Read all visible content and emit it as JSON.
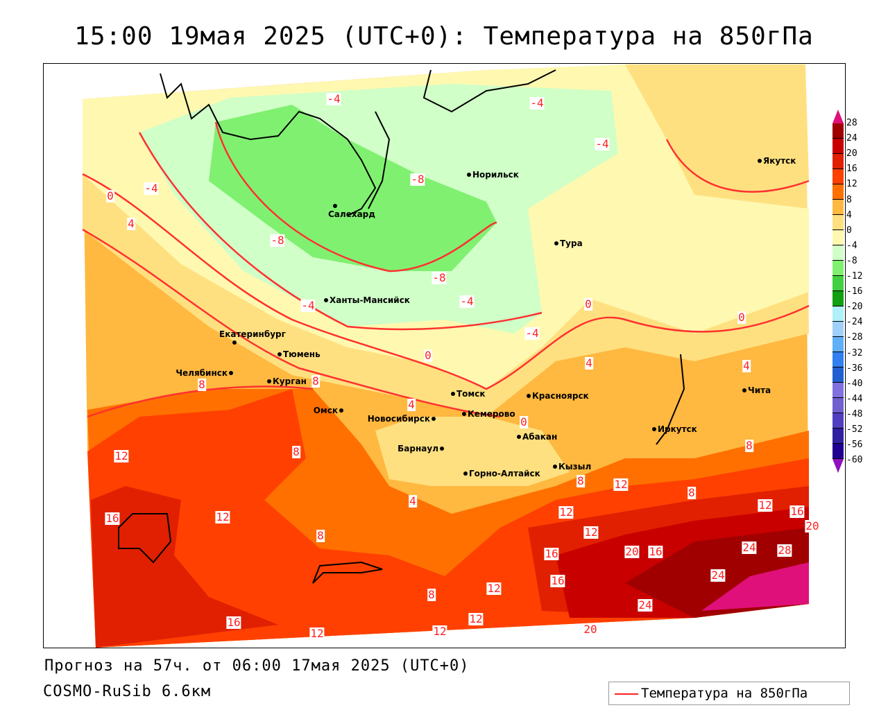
{
  "title": "15:00 19мая 2025 (UTC+0): Температура на 850гПа",
  "footer": {
    "forecast": "Прогноз на 57ч. от 06:00 17мая 2025 (UTC+0)",
    "model": "COSMO-RuSib 6.6км"
  },
  "legend": {
    "label": "Температура на 850гПа",
    "line_color": "#ff2020"
  },
  "colorbar": {
    "labels": [
      "28",
      "24",
      "20",
      "16",
      "12",
      "8",
      "4",
      "0",
      "-4",
      "-8",
      "-12",
      "-16",
      "-20",
      "-24",
      "-28",
      "-32",
      "-36",
      "-40",
      "-44",
      "-48",
      "-52",
      "-56",
      "-60"
    ],
    "colors": [
      "#a00000",
      "#c80000",
      "#e02000",
      "#ff4000",
      "#ff7000",
      "#ffb840",
      "#ffe080",
      "#fff8b0",
      "#d0ffc8",
      "#80f070",
      "#40d040",
      "#10a010",
      "#b0f0f8",
      "#a0d0f8",
      "#60b0f8",
      "#3080f0",
      "#2060d0",
      "#8070e0",
      "#7060d0",
      "#5040c0",
      "#3020a0",
      "#200090"
    ],
    "top_arrow_color": "#e0107a",
    "bottom_arrow_color": "#9010c0"
  },
  "cities": [
    "Норильск",
    "Салехард",
    "Тура",
    "Якутск",
    "Ханты-Мансийск",
    "Екатеринбург",
    "Тюмень",
    "Челябинск",
    "Курган",
    "Омск",
    "Новосибирск",
    "Томск",
    "Кемерово",
    "Красноярск",
    "Абакан",
    "Барнаул",
    "Горно-Алтайск",
    "Кызыл",
    "Иркутск",
    "Чита"
  ],
  "contour_labels": [
    "-4",
    "-4",
    "-4",
    "-8",
    "-4",
    "0",
    "4",
    "-8",
    "-8",
    "-4",
    "-4",
    "0",
    "0",
    "-4",
    "0",
    "4",
    "4",
    "8",
    "8",
    "4",
    "0",
    "8",
    "12",
    "8",
    "8",
    "12",
    "8",
    "4",
    "12",
    "16",
    "20",
    "16",
    "12",
    "8",
    "12",
    "12",
    "16",
    "20",
    "16",
    "24",
    "28",
    "24",
    "16",
    "12",
    "8",
    "24",
    "12",
    "16",
    "12",
    "12",
    "20"
  ]
}
